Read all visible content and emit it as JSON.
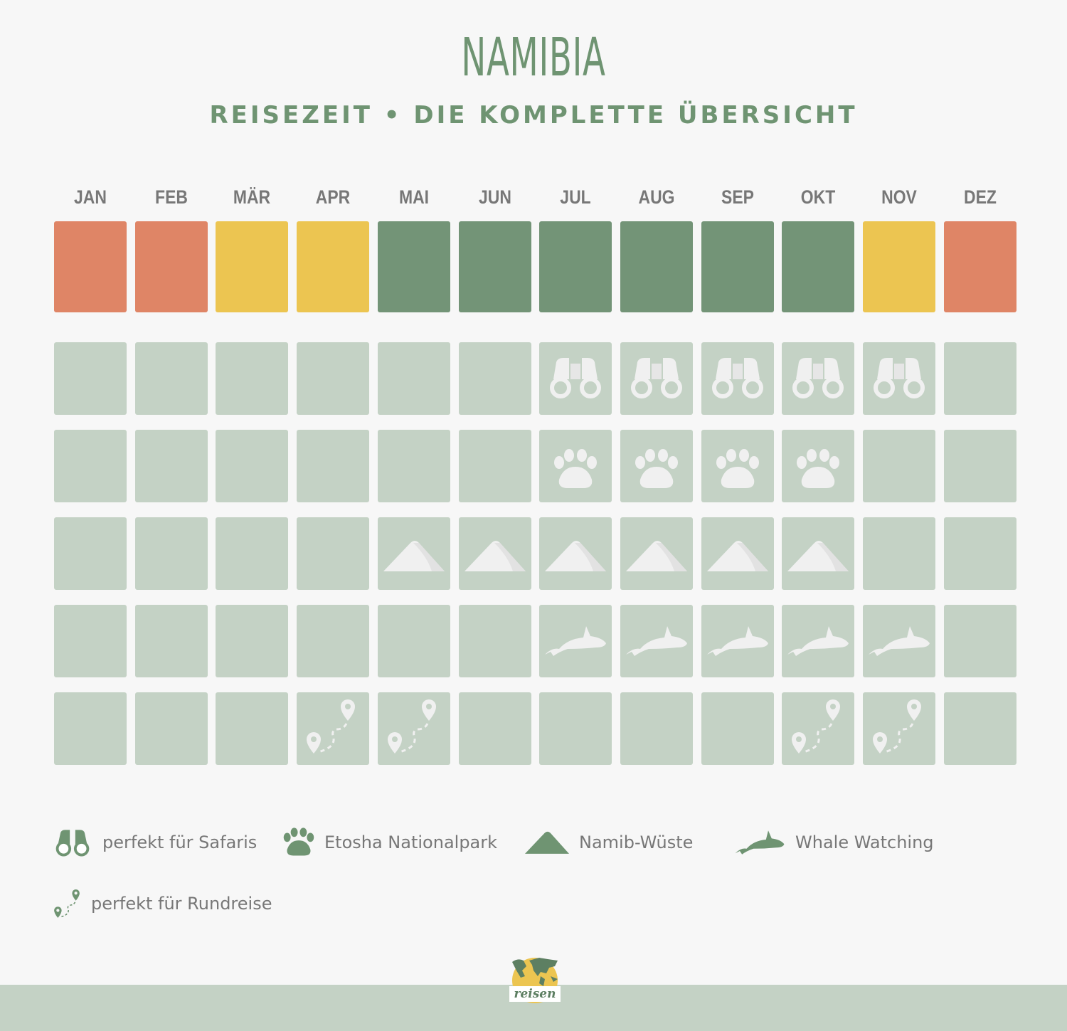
{
  "title": "NAMIBIA",
  "subtitle": "REISEZEIT • DIE KOMPLETTE ÜBERSICHT",
  "colors": {
    "bad": "#df8566",
    "medium": "#ecc551",
    "good": "#739477",
    "cell": "#c4d2c5",
    "icon": "#f0f0f0",
    "accent": "#6f9472"
  },
  "months": [
    {
      "label": "JAN",
      "status": "bad",
      "safari": false,
      "etosha": false,
      "namib": false,
      "whale": false,
      "rundreise": false
    },
    {
      "label": "FEB",
      "status": "bad",
      "safari": false,
      "etosha": false,
      "namib": false,
      "whale": false,
      "rundreise": false
    },
    {
      "label": "MÄR",
      "status": "medium",
      "safari": false,
      "etosha": false,
      "namib": false,
      "whale": false,
      "rundreise": false
    },
    {
      "label": "APR",
      "status": "medium",
      "safari": false,
      "etosha": false,
      "namib": false,
      "whale": false,
      "rundreise": true
    },
    {
      "label": "MAI",
      "status": "good",
      "safari": false,
      "etosha": false,
      "namib": true,
      "whale": false,
      "rundreise": true
    },
    {
      "label": "JUN",
      "status": "good",
      "safari": false,
      "etosha": false,
      "namib": true,
      "whale": false,
      "rundreise": false
    },
    {
      "label": "JUL",
      "status": "good",
      "safari": true,
      "etosha": true,
      "namib": true,
      "whale": true,
      "rundreise": false
    },
    {
      "label": "AUG",
      "status": "good",
      "safari": true,
      "etosha": true,
      "namib": true,
      "whale": true,
      "rundreise": false
    },
    {
      "label": "SEP",
      "status": "good",
      "safari": true,
      "etosha": true,
      "namib": true,
      "whale": true,
      "rundreise": false
    },
    {
      "label": "OKT",
      "status": "good",
      "safari": true,
      "etosha": true,
      "namib": true,
      "whale": true,
      "rundreise": true
    },
    {
      "label": "NOV",
      "status": "medium",
      "safari": true,
      "etosha": false,
      "namib": false,
      "whale": true,
      "rundreise": true
    },
    {
      "label": "DEZ",
      "status": "bad",
      "safari": false,
      "etosha": false,
      "namib": false,
      "whale": false,
      "rundreise": false
    }
  ],
  "categories": [
    {
      "key": "safari",
      "icon": "binoculars-icon",
      "label": "perfekt für Safaris"
    },
    {
      "key": "etosha",
      "icon": "paw-icon",
      "label": "Etosha Nationalpark"
    },
    {
      "key": "namib",
      "icon": "dune-icon",
      "label": "Namib-Wüste"
    },
    {
      "key": "whale",
      "icon": "whale-icon",
      "label": "Whale Watching"
    },
    {
      "key": "rundreise",
      "icon": "route-icon",
      "label": "perfekt für Rundreise"
    }
  ],
  "logo": {
    "text": "reisen"
  }
}
